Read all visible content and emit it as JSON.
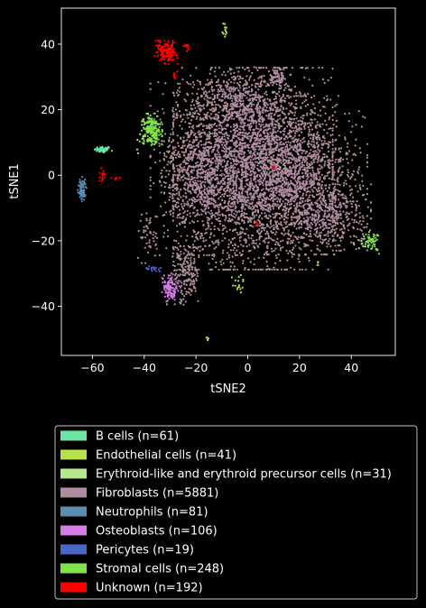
{
  "chart_data": {
    "type": "scatter",
    "title": "",
    "xlabel": "tSNE2",
    "ylabel": "tSNE1",
    "xlim": [
      -72,
      57
    ],
    "ylim": [
      -55,
      51
    ],
    "xticks": [
      -60,
      -40,
      -20,
      0,
      20,
      40
    ],
    "yticks": [
      -40,
      -20,
      0,
      20,
      40
    ],
    "legend_placement": "below",
    "background": "#000000",
    "series": [
      {
        "name": "B cells (n=61)",
        "color": "#6be3a4",
        "clusters": [
          {
            "cx": -56,
            "cy": 7.8,
            "sx": 1.6,
            "sy": 0.5,
            "n": 61
          }
        ]
      },
      {
        "name": "Endothelial cells (n=41)",
        "color": "#b8e04a",
        "clusters": [
          {
            "cx": -9,
            "cy": 44.5,
            "sx": 0.6,
            "sy": 1.3,
            "n": 13
          },
          {
            "cx": -3.5,
            "cy": -33,
            "sx": 1.2,
            "sy": 1.6,
            "n": 16
          },
          {
            "cx": 27,
            "cy": -27,
            "sx": 0.4,
            "sy": 0.6,
            "n": 4
          },
          {
            "cx": -15.5,
            "cy": -50,
            "sx": 0.2,
            "sy": 0.8,
            "n": 5
          },
          {
            "cx": -30,
            "cy": 6,
            "sx": 1.5,
            "sy": 1.5,
            "n": 3
          }
        ]
      },
      {
        "name": "Erythroid-like and erythroid precursor cells (n=31)",
        "color": "#b5e98e",
        "clusters": [
          {
            "cx": -40,
            "cy": 12,
            "sx": 2.2,
            "sy": 3.0,
            "n": 18
          },
          {
            "cx": 44,
            "cy": -21,
            "sx": 2.0,
            "sy": 1.5,
            "n": 13
          }
        ]
      },
      {
        "name": "Fibroblasts (n=5881)",
        "color": "#b08d9e",
        "clusters": [
          {
            "cx": 2,
            "cy": 2,
            "sx": 14,
            "sy": 14,
            "n": 3000
          },
          {
            "cx": 22,
            "cy": 0,
            "sx": 11,
            "sy": 11,
            "n": 1000
          },
          {
            "cx": -20,
            "cy": 2,
            "sx": 8,
            "sy": 12,
            "n": 800
          },
          {
            "cx": 30,
            "cy": -12,
            "sx": 8,
            "sy": 5,
            "n": 400
          },
          {
            "cx": -5,
            "cy": 22,
            "sx": 10,
            "sy": 5,
            "n": 400
          },
          {
            "cx": -24,
            "cy": -30,
            "sx": 2.5,
            "sy": 4.5,
            "n": 180
          },
          {
            "cx": 12,
            "cy": 30,
            "sx": 1.5,
            "sy": 1.5,
            "n": 60
          },
          {
            "cx": -38,
            "cy": -18,
            "sx": 2,
            "sy": 4,
            "n": 41
          }
        ]
      },
      {
        "name": "Neutrophils (n=81)",
        "color": "#5b8db1",
        "clusters": [
          {
            "cx": -64,
            "cy": -4.5,
            "sx": 0.8,
            "sy": 1.8,
            "n": 81
          }
        ]
      },
      {
        "name": "Osteoblasts (n=106)",
        "color": "#d57ee6",
        "clusters": [
          {
            "cx": -30,
            "cy": -35,
            "sx": 1.4,
            "sy": 2.0,
            "n": 106
          }
        ]
      },
      {
        "name": "Pericytes (n=19)",
        "color": "#4a67c8",
        "clusters": [
          {
            "cx": -37,
            "cy": -28.5,
            "sx": 1.5,
            "sy": 0.4,
            "n": 19
          }
        ]
      },
      {
        "name": "Stromal cells (n=248)",
        "color": "#7fe24a",
        "clusters": [
          {
            "cx": -37,
            "cy": 14,
            "sx": 1.8,
            "sy": 2.2,
            "n": 200
          },
          {
            "cx": 48,
            "cy": -20,
            "sx": 1.6,
            "sy": 1.8,
            "n": 48
          }
        ]
      },
      {
        "name": "Unknown (n=192)",
        "color": "#ff0000",
        "clusters": [
          {
            "cx": -31.5,
            "cy": 37.5,
            "sx": 2.0,
            "sy": 1.6,
            "n": 140
          },
          {
            "cx": -23.5,
            "cy": 39,
            "sx": 0.6,
            "sy": 0.5,
            "n": 12
          },
          {
            "cx": -28,
            "cy": 30.5,
            "sx": 0.5,
            "sy": 0.5,
            "n": 8
          },
          {
            "cx": -56,
            "cy": -0.5,
            "sx": 0.7,
            "sy": 1.2,
            "n": 14
          },
          {
            "cx": -51,
            "cy": -1,
            "sx": 0.8,
            "sy": 0.2,
            "n": 8
          },
          {
            "cx": 3.5,
            "cy": -15,
            "sx": 0.4,
            "sy": 0.4,
            "n": 5
          },
          {
            "cx": 10,
            "cy": 2.5,
            "sx": 0.3,
            "sy": 0.3,
            "n": 5
          }
        ]
      }
    ]
  }
}
